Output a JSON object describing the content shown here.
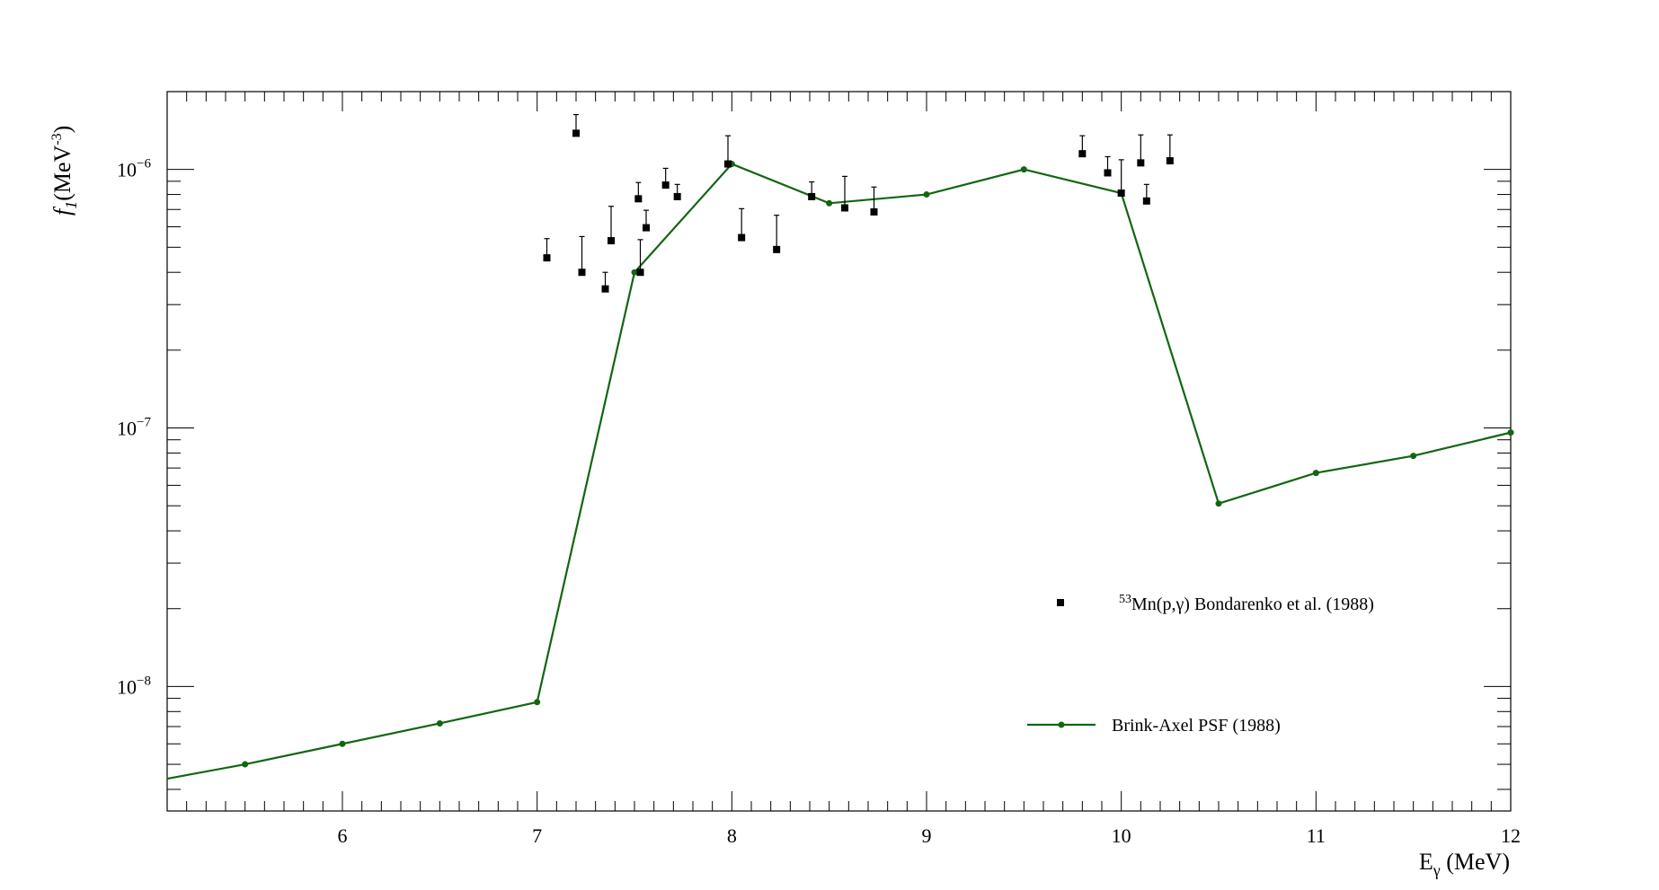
{
  "chart_data": {
    "type": "scatter",
    "xlabel": "E",
    "xlabel_sub": "γ",
    "xlabel_unit": " (MeV)",
    "ylabel_sym": "f",
    "ylabel_sub": "1",
    "ylabel_unit": "(MeV",
    "ylabel_exp": "-3",
    "ylabel_close": ")",
    "xlim": [
      5.1,
      12.0
    ],
    "ylim": [
      3.3e-09,
      2e-06
    ],
    "y_scale": "log",
    "grid": false,
    "legend_position": "right",
    "x_ticks": [
      "6",
      "7",
      "8",
      "9",
      "10",
      "11",
      "12"
    ],
    "y_ticks": [
      {
        "base": "10",
        "exp": "−8",
        "value": 1e-08
      },
      {
        "base": "10",
        "exp": "−7",
        "value": 1e-07
      },
      {
        "base": "10",
        "exp": "−6",
        "value": 1e-06
      }
    ],
    "series": [
      {
        "name_sup": "53",
        "name": "Mn(p,γ) Bondarenko et al. (1988)",
        "kind": "points",
        "color": "#000000",
        "points": [
          {
            "x": 7.05,
            "y": 4.55e-07,
            "err": 8.5e-08
          },
          {
            "x": 7.2,
            "y": 1.38e-06,
            "err": 2.5e-07
          },
          {
            "x": 7.23,
            "y": 4e-07,
            "err": 1.5e-07
          },
          {
            "x": 7.35,
            "y": 3.45e-07,
            "err": 5.5e-08
          },
          {
            "x": 7.38,
            "y": 5.3e-07,
            "err": 1.9e-07
          },
          {
            "x": 7.52,
            "y": 7.7e-07,
            "err": 1.2e-07
          },
          {
            "x": 7.53,
            "y": 4e-07,
            "err": 1.35e-07
          },
          {
            "x": 7.56,
            "y": 5.95e-07,
            "err": 1e-07
          },
          {
            "x": 7.66,
            "y": 8.7e-07,
            "err": 1.4e-07
          },
          {
            "x": 7.72,
            "y": 7.85e-07,
            "err": 9e-08
          },
          {
            "x": 7.98,
            "y": 1.05e-06,
            "err": 3e-07
          },
          {
            "x": 8.05,
            "y": 5.45e-07,
            "err": 1.6e-07
          },
          {
            "x": 8.23,
            "y": 4.9e-07,
            "err": 1.75e-07
          },
          {
            "x": 8.41,
            "y": 7.85e-07,
            "err": 1.1e-07
          },
          {
            "x": 8.58,
            "y": 7.1e-07,
            "err": 2.3e-07
          },
          {
            "x": 8.73,
            "y": 6.85e-07,
            "err": 1.7e-07
          },
          {
            "x": 9.8,
            "y": 1.15e-06,
            "err": 2e-07
          },
          {
            "x": 9.93,
            "y": 9.7e-07,
            "err": 1.5e-07
          },
          {
            "x": 10.0,
            "y": 8.1e-07,
            "err": 2.8e-07
          },
          {
            "x": 10.1,
            "y": 1.06e-06,
            "err": 3e-07
          },
          {
            "x": 10.13,
            "y": 7.55e-07,
            "err": 1.2e-07
          },
          {
            "x": 10.25,
            "y": 1.08e-06,
            "err": 2.8e-07
          }
        ]
      },
      {
        "name": "Brink-Axel PSF (1988)",
        "kind": "line",
        "color": "#116611",
        "x": [
          5.1,
          5.5,
          6.0,
          6.5,
          7.0,
          7.5,
          8.0,
          8.5,
          9.0,
          9.5,
          10.0,
          10.5,
          11.0,
          11.5,
          12.0
        ],
        "y": [
          4.4e-09,
          5e-09,
          6e-09,
          7.2e-09,
          8.7e-09,
          4e-07,
          1.05e-06,
          7.4e-07,
          8e-07,
          1e-06,
          8.1e-07,
          5.1e-08,
          6.7e-08,
          7.8e-08,
          9.6e-08
        ],
        "markers_from_index": 1
      }
    ]
  }
}
